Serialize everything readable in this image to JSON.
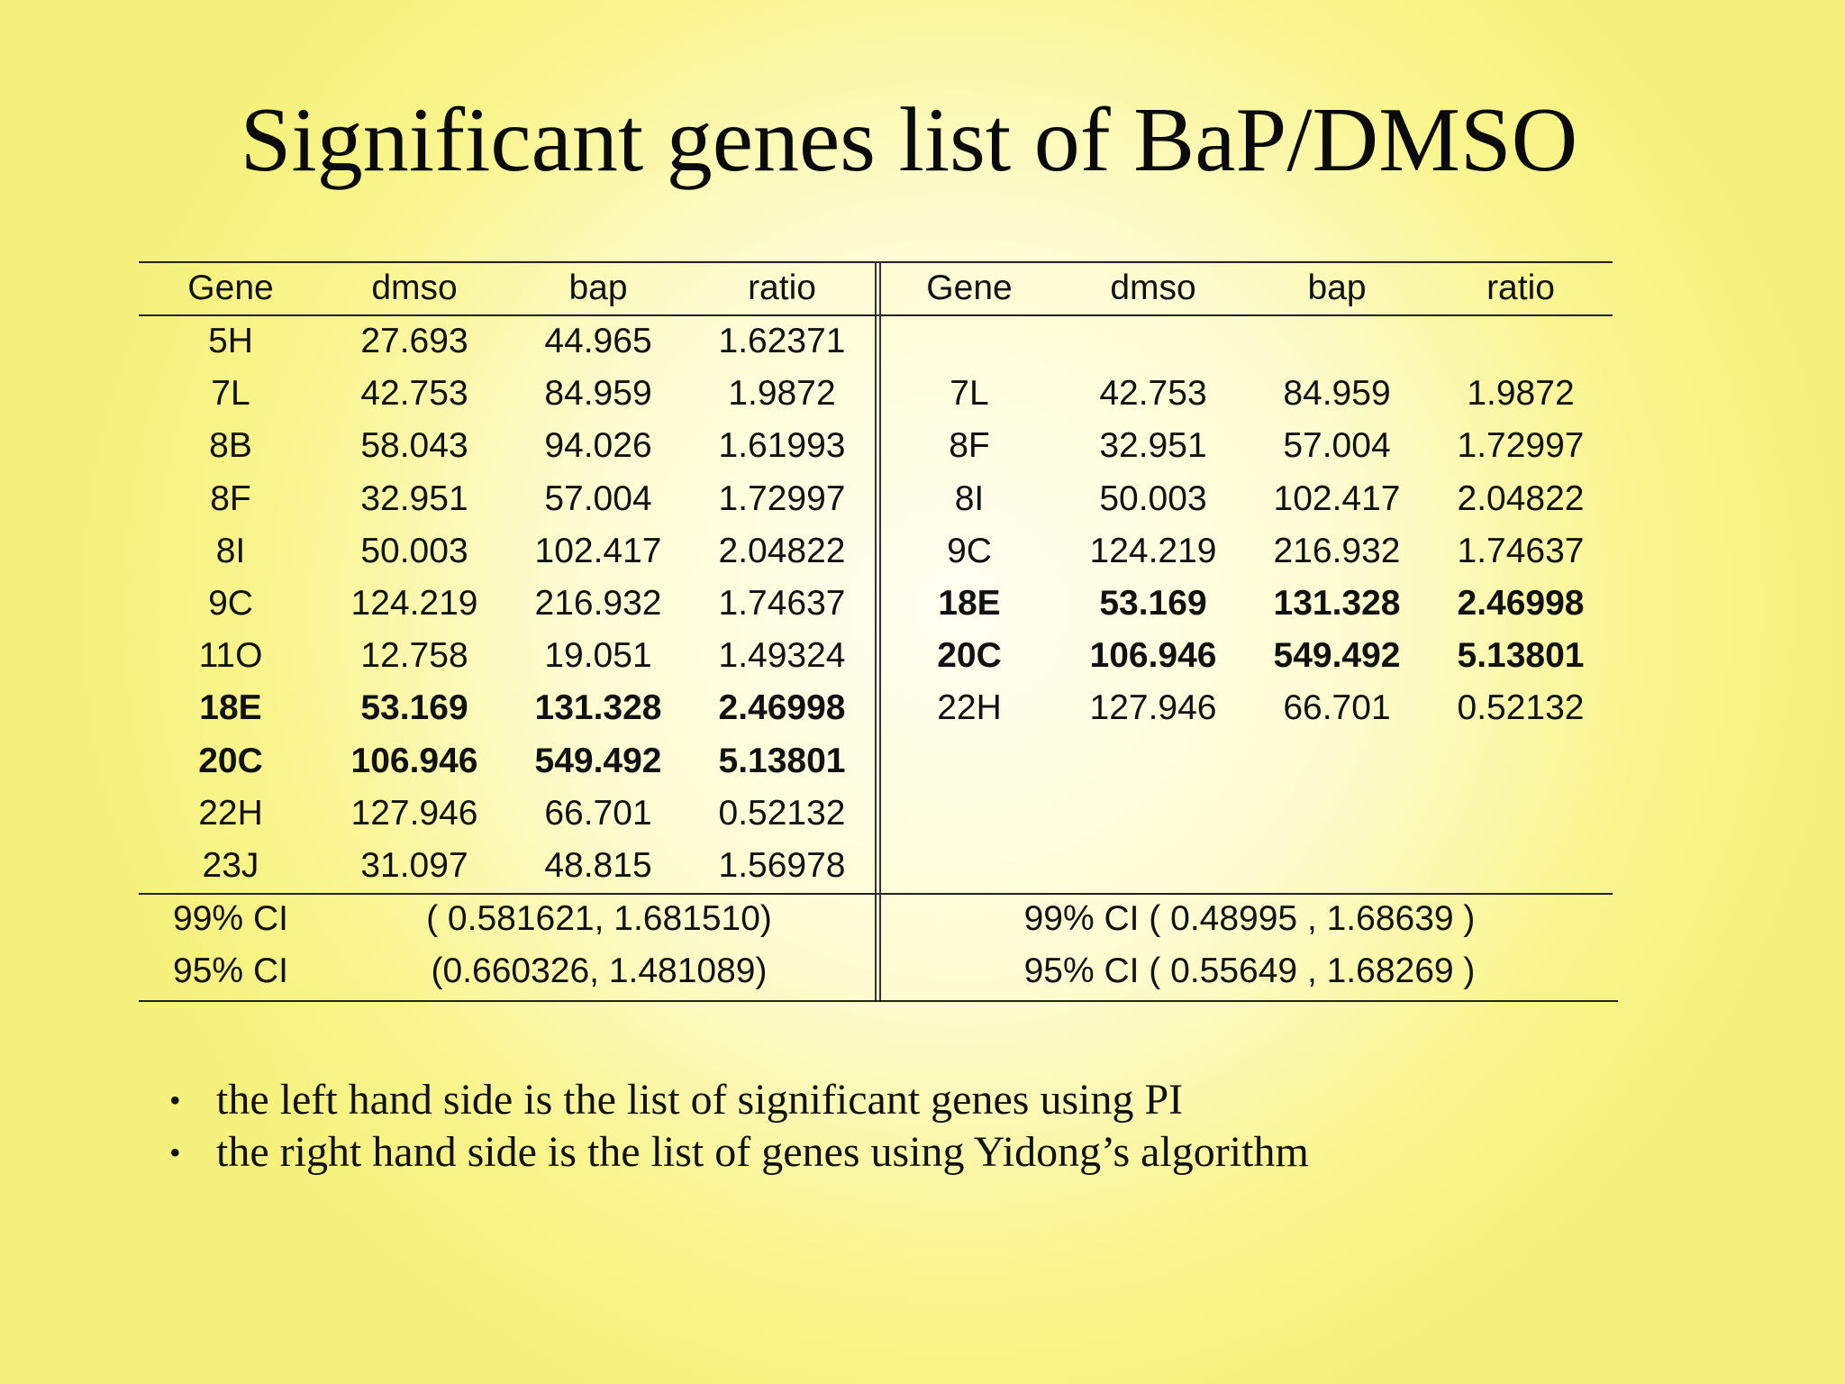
{
  "title": "Significant genes list of BaP/DMSO",
  "left_table": {
    "headers": [
      "Gene",
      "dmso",
      "bap",
      "ratio"
    ],
    "rows": [
      {
        "cells": [
          "5H",
          "27.693",
          "44.965",
          "1.62371"
        ],
        "bold": false
      },
      {
        "cells": [
          "7L",
          "42.753",
          "84.959",
          "1.9872"
        ],
        "bold": false
      },
      {
        "cells": [
          "8B",
          "58.043",
          "94.026",
          "1.61993"
        ],
        "bold": false
      },
      {
        "cells": [
          "8F",
          "32.951",
          "57.004",
          "1.72997"
        ],
        "bold": false
      },
      {
        "cells": [
          "8I",
          "50.003",
          "102.417",
          "2.04822"
        ],
        "bold": false
      },
      {
        "cells": [
          "9C",
          "124.219",
          "216.932",
          "1.74637"
        ],
        "bold": false
      },
      {
        "cells": [
          "11O",
          "12.758",
          "19.051",
          "1.49324"
        ],
        "bold": false
      },
      {
        "cells": [
          "18E",
          "53.169",
          "131.328",
          "2.46998"
        ],
        "bold": true
      },
      {
        "cells": [
          "20C",
          "106.946",
          "549.492",
          "5.13801"
        ],
        "bold": true
      },
      {
        "cells": [
          "22H",
          "127.946",
          "66.701",
          "0.52132"
        ],
        "bold": false
      },
      {
        "cells": [
          "23J",
          "31.097",
          "48.815",
          "1.56978"
        ],
        "bold": false
      }
    ],
    "ci99_label": "99% CI",
    "ci99_value": "( 0.581621, 1.681510)",
    "ci95_label": "95% CI",
    "ci95_value": "(0.660326, 1.481089)"
  },
  "right_table": {
    "headers": [
      "Gene",
      "dmso",
      "bap",
      "ratio"
    ],
    "rows": [
      {
        "cells": [
          "7L",
          "42.753",
          "84.959",
          "1.9872"
        ],
        "bold": false
      },
      {
        "cells": [
          "8F",
          "32.951",
          "57.004",
          "1.72997"
        ],
        "bold": false
      },
      {
        "cells": [
          "8I",
          "50.003",
          "102.417",
          "2.04822"
        ],
        "bold": false
      },
      {
        "cells": [
          "9C",
          "124.219",
          "216.932",
          "1.74637"
        ],
        "bold": false
      },
      {
        "cells": [
          "18E",
          "53.169",
          "131.328",
          "2.46998"
        ],
        "bold": true
      },
      {
        "cells": [
          "20C",
          "106.946",
          "549.492",
          "5.13801"
        ],
        "bold": true
      },
      {
        "cells": [
          "22H",
          "127.946",
          "66.701",
          "0.52132"
        ],
        "bold": false
      }
    ],
    "ci99": "99% CI ( 0.48995 , 1.68639 )",
    "ci95": "95% CI ( 0.55649 , 1.68269 )"
  },
  "bullets": [
    "the left hand side is the list of significant genes using PI",
    "the right hand side is the list of genes using Yidong’s algorithm"
  ],
  "bullet_symbol": "•"
}
